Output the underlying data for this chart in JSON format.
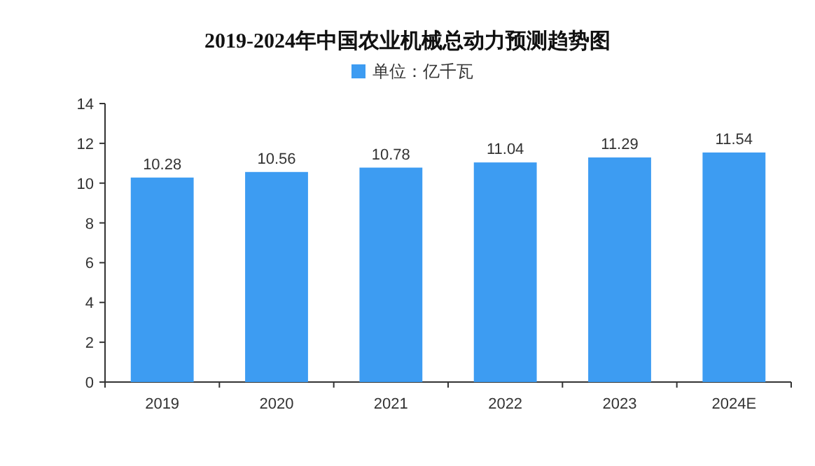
{
  "chart_data": {
    "type": "bar",
    "title": "2019-2024年中国农业机械总动力预测趋势图",
    "categories": [
      "2019",
      "2020",
      "2021",
      "2022",
      "2023",
      "2024E"
    ],
    "series": [
      {
        "name": "单位：亿千瓦",
        "color": "#3d9cf2",
        "values": [
          10.28,
          10.56,
          10.78,
          11.04,
          11.29,
          11.54
        ]
      }
    ],
    "ylim": [
      0,
      14
    ],
    "yticks": [
      0,
      2,
      4,
      6,
      8,
      10,
      12,
      14
    ],
    "grid": false,
    "legend": "top",
    "data_labels": true
  }
}
